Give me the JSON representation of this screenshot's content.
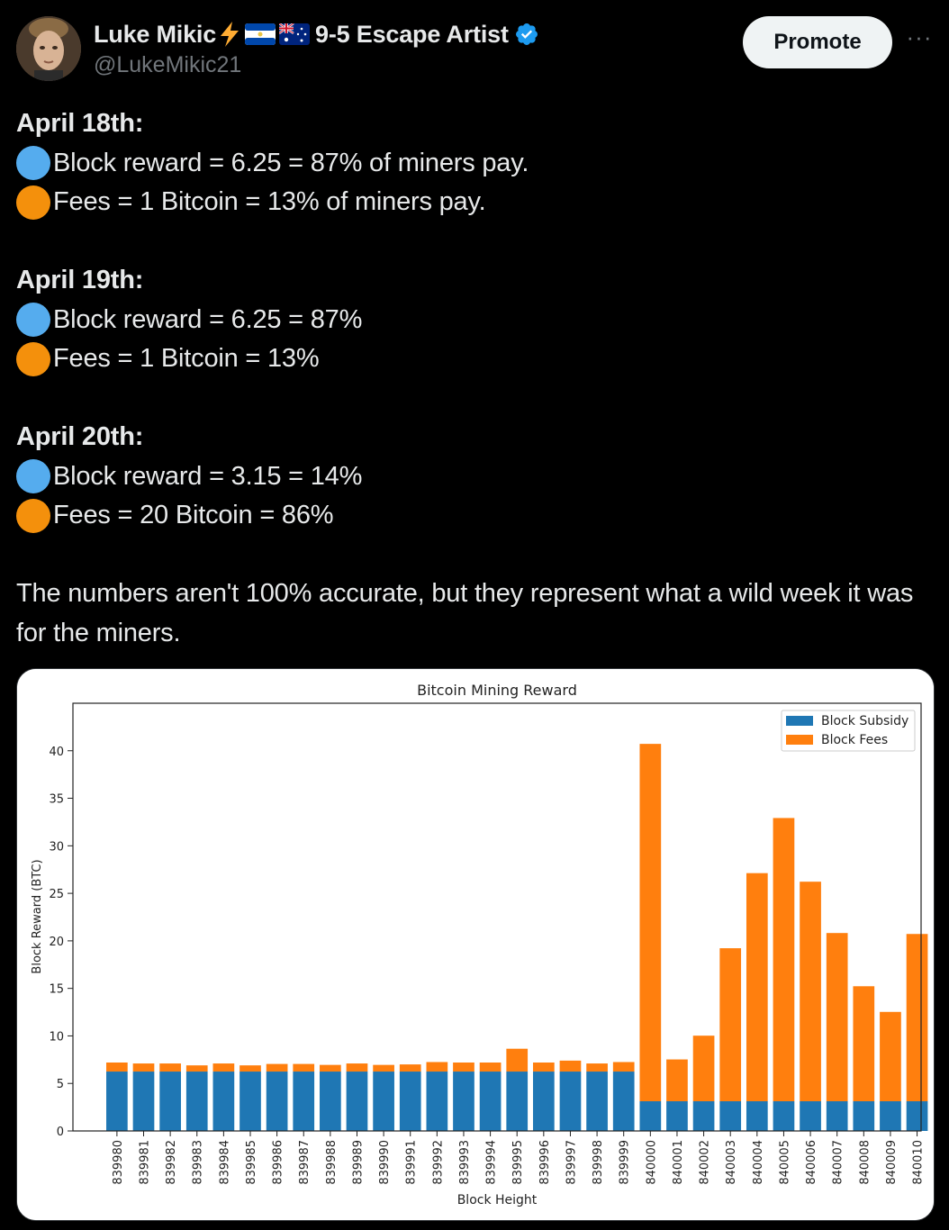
{
  "tweet": {
    "display_name": "Luke Mikic",
    "display_suffix": "9-5 Escape Artist",
    "handle": "@LukeMikic21",
    "promote_label": "Promote",
    "more_label": "···",
    "sections": [
      {
        "date": "April 18th:",
        "block_line": "Block reward = 6.25 = 87% of miners pay.",
        "fees_line": "Fees = 1 Bitcoin = 13% of miners pay."
      },
      {
        "date": "April 19th:",
        "block_line": "Block reward = 6.25 = 87%",
        "fees_line": "Fees = 1 Bitcoin = 13%"
      },
      {
        "date": "April 20th:",
        "block_line": "Block reward = 3.15 = 14%",
        "fees_line": "Fees = 20 Bitcoin = 86%"
      }
    ],
    "closing": "The numbers aren't 100% accurate, but they represent what a wild week it was for the miners."
  },
  "colors": {
    "background": "#000000",
    "text": "#e7e9ea",
    "muted": "#71767b",
    "verified": "#1d9bf0",
    "emoji_blue": "#55acee",
    "emoji_orange": "#f4900c",
    "subsidy": "#1f77b4",
    "fees": "#ff7f0e"
  },
  "chart_data": {
    "type": "bar",
    "stacked": true,
    "title": "Bitcoin Mining Reward",
    "xlabel": "Block Height",
    "ylabel": "Block Reward (BTC)",
    "ylim": [
      0,
      45
    ],
    "yticks": [
      0,
      5,
      10,
      15,
      20,
      25,
      30,
      35,
      40
    ],
    "legend_position": "top-right",
    "categories": [
      "839980",
      "839981",
      "839982",
      "839983",
      "839984",
      "839985",
      "839986",
      "839987",
      "839988",
      "839989",
      "839990",
      "839991",
      "839992",
      "839993",
      "839994",
      "839995",
      "839996",
      "839997",
      "839998",
      "839999",
      "840000",
      "840001",
      "840002",
      "840003",
      "840004",
      "840005",
      "840006",
      "840007",
      "840008",
      "840009",
      "840010"
    ],
    "series": [
      {
        "name": "Block Subsidy",
        "color": "#1f77b4",
        "values": [
          6.25,
          6.25,
          6.25,
          6.25,
          6.25,
          6.25,
          6.25,
          6.25,
          6.25,
          6.25,
          6.25,
          6.25,
          6.25,
          6.25,
          6.25,
          6.25,
          6.25,
          6.25,
          6.25,
          6.25,
          3.125,
          3.125,
          3.125,
          3.125,
          3.125,
          3.125,
          3.125,
          3.125,
          3.125,
          3.125,
          3.125
        ]
      },
      {
        "name": "Block Fees",
        "color": "#ff7f0e",
        "values": [
          0.95,
          0.85,
          0.85,
          0.65,
          0.85,
          0.65,
          0.8,
          0.8,
          0.7,
          0.85,
          0.7,
          0.75,
          1.0,
          0.95,
          0.95,
          2.4,
          0.95,
          1.15,
          0.85,
          1.0,
          37.6,
          4.4,
          6.9,
          16.1,
          24.0,
          29.8,
          23.1,
          17.7,
          12.1,
          9.4,
          17.6
        ]
      }
    ]
  }
}
